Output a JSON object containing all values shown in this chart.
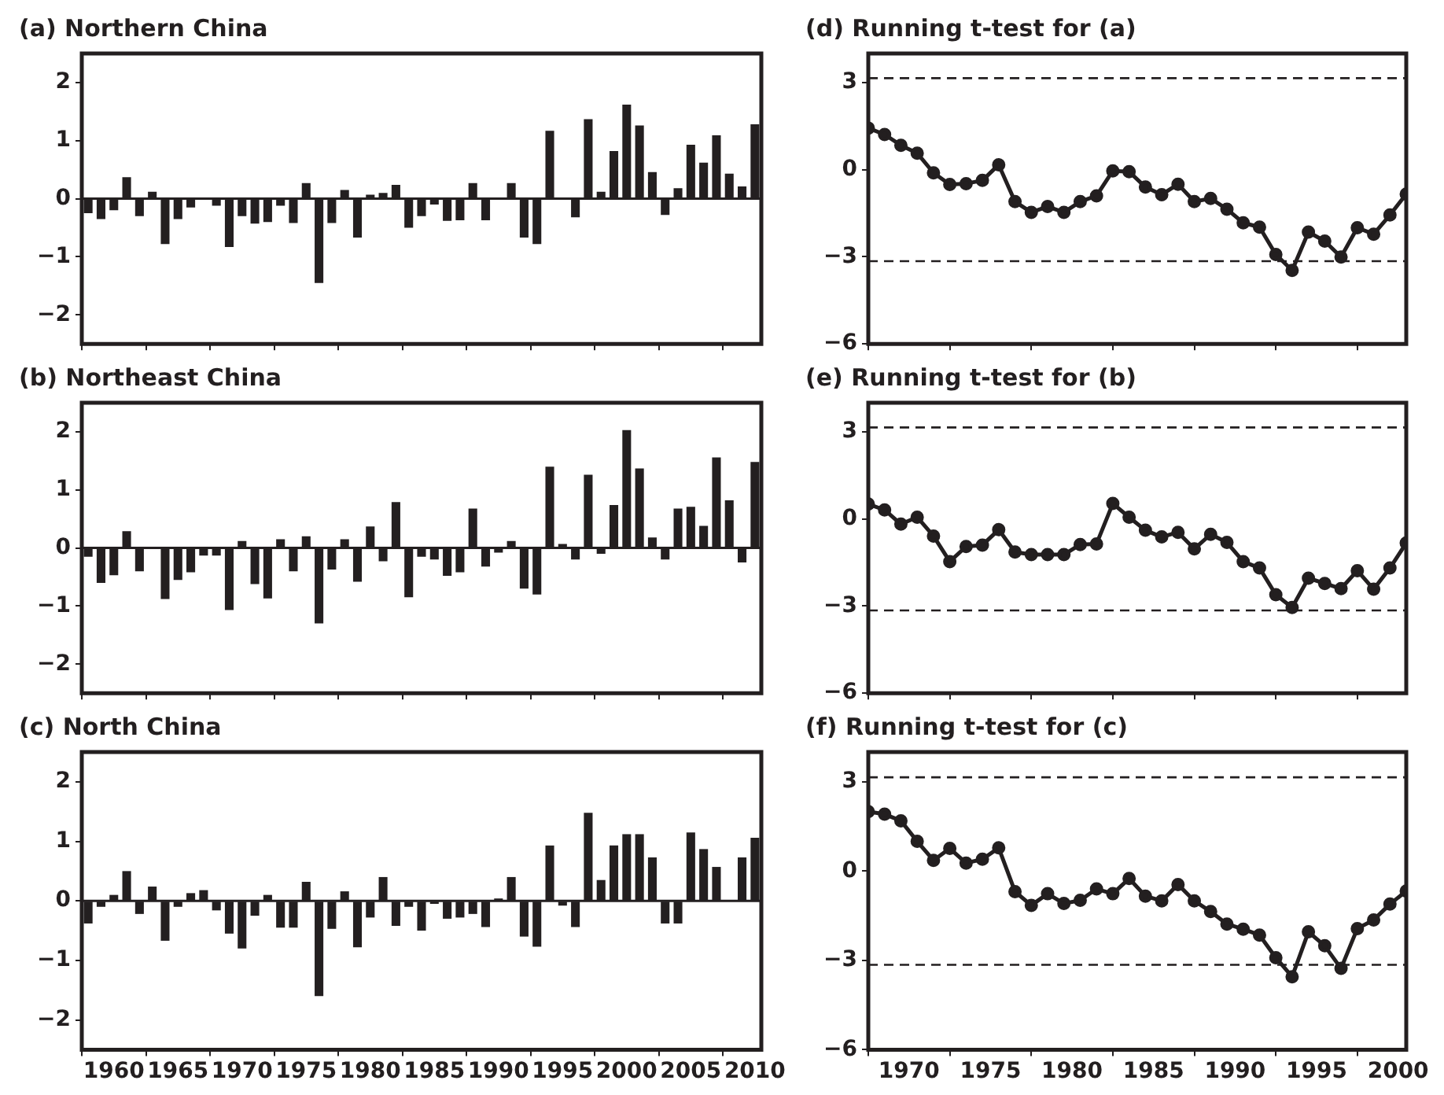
{
  "chart_data": [
    {
      "type": "bar",
      "title": "(a) Northern China",
      "color": "#231f20",
      "xlim": [
        1957.5,
        2010.5
      ],
      "xticks": [
        1960,
        1965,
        1970,
        1975,
        1980,
        1985,
        1990,
        1995,
        2000,
        2005,
        2010
      ],
      "ylim": [
        -2.5,
        2.5
      ],
      "yticks": [
        -2,
        -1,
        0,
        1,
        2
      ],
      "tick_labels": "y",
      "x": [
        1958,
        1959,
        1960,
        1961,
        1962,
        1963,
        1964,
        1965,
        1966,
        1967,
        1968,
        1969,
        1970,
        1971,
        1972,
        1973,
        1974,
        1975,
        1976,
        1977,
        1978,
        1979,
        1980,
        1981,
        1982,
        1983,
        1984,
        1985,
        1986,
        1987,
        1988,
        1989,
        1990,
        1991,
        1992,
        1993,
        1994,
        1995,
        1996,
        1997,
        1998,
        1999,
        2000,
        2001,
        2002,
        2003,
        2004,
        2005,
        2006,
        2007,
        2008,
        2009,
        2010
      ],
      "values": [
        -0.25,
        -0.35,
        -0.2,
        0.37,
        -0.3,
        0.12,
        -0.78,
        -0.35,
        -0.15,
        0,
        -0.12,
        -0.83,
        -0.3,
        -0.43,
        -0.4,
        -0.12,
        -0.42,
        0.27,
        -1.45,
        -0.42,
        0.15,
        -0.67,
        0.07,
        0.1,
        0.24,
        -0.5,
        -0.3,
        -0.1,
        -0.38,
        -0.37,
        0.27,
        -0.37,
        0,
        0.27,
        -0.67,
        -0.78,
        1.17,
        0,
        -0.32,
        1.37,
        0.12,
        0.82,
        1.62,
        1.26,
        0.46,
        -0.28,
        0.18,
        0.93,
        0.62,
        1.09,
        0.43,
        0.21,
        1.28
      ]
    },
    {
      "type": "line",
      "title": "(d) Running t-test for (a)",
      "color": "#231f20",
      "marker": "circle",
      "line_style": "solid",
      "xlim": [
        1967.5,
        2000.5
      ],
      "xticks": [
        1970,
        1975,
        1980,
        1985,
        1990,
        1995,
        2000
      ],
      "ylim": [
        -6,
        4
      ],
      "yticks": [
        -6,
        -3,
        0,
        3
      ],
      "tick_labels": "y",
      "ref_lines": [
        {
          "axis": "y",
          "value": 3.15,
          "line_style": "dashed"
        },
        {
          "axis": "y",
          "value": -3.15,
          "line_style": "dashed"
        }
      ],
      "x": [
        1967.5,
        1968.5,
        1969.5,
        1970.5,
        1971.5,
        1972.5,
        1973.5,
        1974.5,
        1975.5,
        1976.5,
        1977.5,
        1978.5,
        1979.5,
        1980.5,
        1981.5,
        1982.5,
        1983.5,
        1984.5,
        1985.5,
        1986.5,
        1987.5,
        1988.5,
        1989.5,
        1990.5,
        1991.5,
        1992.5,
        1993.5,
        1994.5,
        1995.5,
        1996.5,
        1997.5,
        1998.5,
        1999.5,
        2000.5
      ],
      "values": [
        1.43,
        1.21,
        0.84,
        0.57,
        -0.11,
        -0.51,
        -0.48,
        -0.37,
        0.17,
        -1.1,
        -1.47,
        -1.27,
        -1.47,
        -1.1,
        -0.9,
        -0.04,
        -0.07,
        -0.6,
        -0.86,
        -0.5,
        -1.1,
        -0.99,
        -1.36,
        -1.83,
        -1.98,
        -2.92,
        -3.47,
        -2.15,
        -2.46,
        -3.01,
        -2.0,
        -2.22,
        -1.56,
        -0.84
      ]
    },
    {
      "type": "bar",
      "title": "(b) Northeast China",
      "color": "#231f20",
      "xlim": [
        1957.5,
        2010.5
      ],
      "xticks": [
        1960,
        1965,
        1970,
        1975,
        1980,
        1985,
        1990,
        1995,
        2000,
        2005,
        2010
      ],
      "ylim": [
        -2.5,
        2.5
      ],
      "yticks": [
        -2,
        -1,
        0,
        1,
        2
      ],
      "tick_labels": "y",
      "x": [
        1958,
        1959,
        1960,
        1961,
        1962,
        1963,
        1964,
        1965,
        1966,
        1967,
        1968,
        1969,
        1970,
        1971,
        1972,
        1973,
        1974,
        1975,
        1976,
        1977,
        1978,
        1979,
        1980,
        1981,
        1982,
        1983,
        1984,
        1985,
        1986,
        1987,
        1988,
        1989,
        1990,
        1991,
        1992,
        1993,
        1994,
        1995,
        1996,
        1997,
        1998,
        1999,
        2000,
        2001,
        2002,
        2003,
        2004,
        2005,
        2006,
        2007,
        2008,
        2009,
        2010
      ],
      "values": [
        -0.15,
        -0.6,
        -0.47,
        0.29,
        -0.4,
        0.02,
        -0.88,
        -0.55,
        -0.42,
        -0.13,
        -0.13,
        -1.07,
        0.12,
        -0.62,
        -0.87,
        0.15,
        -0.4,
        0.2,
        -1.3,
        -0.37,
        0.15,
        -0.58,
        0.37,
        -0.23,
        0.79,
        -0.85,
        -0.15,
        -0.2,
        -0.48,
        -0.42,
        0.68,
        -0.32,
        -0.08,
        0.12,
        -0.7,
        -0.8,
        1.4,
        0.07,
        -0.2,
        1.26,
        -0.1,
        0.74,
        2.03,
        1.37,
        0.18,
        -0.2,
        0.68,
        0.71,
        0.38,
        1.56,
        0.82,
        -0.25,
        1.48
      ]
    },
    {
      "type": "line",
      "title": "(e) Running t-test for (b)",
      "color": "#231f20",
      "marker": "circle",
      "line_style": "solid",
      "xlim": [
        1967.5,
        2000.5
      ],
      "xticks": [
        1970,
        1975,
        1980,
        1985,
        1990,
        1995,
        2000
      ],
      "ylim": [
        -6,
        4
      ],
      "yticks": [
        -6,
        -3,
        0,
        3
      ],
      "tick_labels": "y",
      "ref_lines": [
        {
          "axis": "y",
          "value": 3.15,
          "line_style": "dashed"
        },
        {
          "axis": "y",
          "value": -3.15,
          "line_style": "dashed"
        }
      ],
      "x": [
        1967.5,
        1968.5,
        1969.5,
        1970.5,
        1971.5,
        1972.5,
        1973.5,
        1974.5,
        1975.5,
        1976.5,
        1977.5,
        1978.5,
        1979.5,
        1980.5,
        1981.5,
        1982.5,
        1983.5,
        1984.5,
        1985.5,
        1986.5,
        1987.5,
        1988.5,
        1989.5,
        1990.5,
        1991.5,
        1992.5,
        1993.5,
        1994.5,
        1995.5,
        1996.5,
        1997.5,
        1998.5,
        1999.5,
        2000.5
      ],
      "values": [
        0.51,
        0.31,
        -0.18,
        0.06,
        -0.59,
        -1.47,
        -0.95,
        -0.9,
        -0.37,
        -1.14,
        -1.23,
        -1.23,
        -1.23,
        -0.88,
        -0.86,
        0.53,
        0.06,
        -0.39,
        -0.62,
        -0.46,
        -1.03,
        -0.53,
        -0.81,
        -1.47,
        -1.69,
        -2.61,
        -3.05,
        -2.04,
        -2.22,
        -2.4,
        -1.78,
        -2.42,
        -1.69,
        -0.83
      ]
    },
    {
      "type": "bar",
      "title": "(c) North China",
      "color": "#231f20",
      "xlim": [
        1957.5,
        2010.5
      ],
      "xticks": [
        1960,
        1965,
        1970,
        1975,
        1980,
        1985,
        1990,
        1995,
        2000,
        2005,
        2010
      ],
      "ylim": [
        -2.5,
        2.5
      ],
      "yticks": [
        -2,
        -1,
        0,
        1,
        2
      ],
      "x": [
        1958,
        1959,
        1960,
        1961,
        1962,
        1963,
        1964,
        1965,
        1966,
        1967,
        1968,
        1969,
        1970,
        1971,
        1972,
        1973,
        1974,
        1975,
        1976,
        1977,
        1978,
        1979,
        1980,
        1981,
        1982,
        1983,
        1984,
        1985,
        1986,
        1987,
        1988,
        1989,
        1990,
        1991,
        1992,
        1993,
        1994,
        1995,
        1996,
        1997,
        1998,
        1999,
        2000,
        2001,
        2002,
        2003,
        2004,
        2005,
        2006,
        2007,
        2008,
        2009,
        2010
      ],
      "values": [
        -0.38,
        -0.1,
        0.1,
        0.5,
        -0.22,
        0.24,
        -0.67,
        -0.1,
        0.13,
        0.18,
        -0.16,
        -0.55,
        -0.8,
        -0.25,
        0.1,
        -0.45,
        -0.45,
        0.32,
        -1.6,
        -0.47,
        0.16,
        -0.78,
        -0.28,
        0.4,
        -0.42,
        -0.1,
        -0.5,
        -0.05,
        -0.3,
        -0.28,
        -0.22,
        -0.44,
        0.04,
        0.4,
        -0.6,
        -0.77,
        0.93,
        -0.08,
        -0.44,
        1.48,
        0.35,
        0.93,
        1.12,
        1.12,
        0.73,
        -0.38,
        -0.38,
        1.15,
        0.87,
        0.57,
        0,
        0.73,
        1.06
      ]
    },
    {
      "type": "line",
      "title": "(f) Running t-test for (c)",
      "color": "#231f20",
      "marker": "circle",
      "line_style": "solid",
      "xlim": [
        1967.5,
        2000.5
      ],
      "xticks": [
        1970,
        1975,
        1980,
        1985,
        1990,
        1995,
        2000
      ],
      "ylim": [
        -6,
        4
      ],
      "yticks": [
        -6,
        -3,
        0,
        3
      ],
      "ref_lines": [
        {
          "axis": "y",
          "value": 3.15,
          "line_style": "dashed"
        },
        {
          "axis": "y",
          "value": -3.15,
          "line_style": "dashed"
        }
      ],
      "x": [
        1967.5,
        1968.5,
        1969.5,
        1970.5,
        1971.5,
        1972.5,
        1973.5,
        1974.5,
        1975.5,
        1976.5,
        1977.5,
        1978.5,
        1979.5,
        1980.5,
        1981.5,
        1982.5,
        1983.5,
        1984.5,
        1985.5,
        1986.5,
        1987.5,
        1988.5,
        1989.5,
        1990.5,
        1991.5,
        1992.5,
        1993.5,
        1994.5,
        1995.5,
        1996.5,
        1997.5,
        1998.5,
        1999.5,
        2000.5
      ],
      "values": [
        2.0,
        1.91,
        1.69,
        1.0,
        0.36,
        0.76,
        0.27,
        0.4,
        0.78,
        -0.69,
        -1.15,
        -0.76,
        -1.09,
        -0.98,
        -0.6,
        -0.76,
        -0.25,
        -0.84,
        -1.0,
        -0.45,
        -1.0,
        -1.36,
        -1.78,
        -1.95,
        -2.15,
        -2.91,
        -3.55,
        -2.04,
        -2.51,
        -3.27,
        -1.93,
        -1.64,
        -1.11,
        -0.67
      ]
    }
  ]
}
